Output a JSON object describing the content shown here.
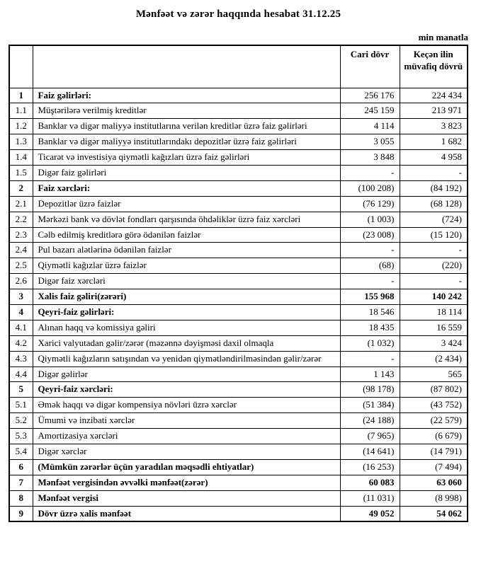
{
  "title": "Mənfəət və zərər haqqında hesabat 31.12.25",
  "unit_note": "min manatla",
  "table": {
    "headers": {
      "number": "",
      "label": "",
      "current": "Cari dövr",
      "previous": "Keçən ilin müvafiq dövrü"
    },
    "rows": [
      {
        "num": "1",
        "label": "Faiz gəlirləri:",
        "current": "256 176",
        "previous": "224 434",
        "bold": true
      },
      {
        "num": "1.1",
        "label": "Müştərilərə verilmiş kreditlər",
        "current": "245 159",
        "previous": "213 971"
      },
      {
        "num": "1.2",
        "label": "Banklar və digər maliyyə institutlarına verilən kreditlər üzrə faiz gəlirləri",
        "current": "4 114",
        "previous": "3 823"
      },
      {
        "num": "1.3",
        "label": "Banklar və digər maliyyə institutlarındakı depozitlər üzrə faiz gəlirləri",
        "current": "3 055",
        "previous": "1 682"
      },
      {
        "num": "1.4",
        "label": "Ticarət və investisiya qiymətli kağızları üzrə faiz gəlirləri",
        "current": "3 848",
        "previous": "4 958"
      },
      {
        "num": "1.5",
        "label": "Digər faiz gəlirləri",
        "current": "-",
        "previous": "-"
      },
      {
        "num": "2",
        "label": "Faiz xərcləri:",
        "current": "(100 208)",
        "previous": "(84 192)",
        "bold": true
      },
      {
        "num": "2.1",
        "label": "Depozitlər üzrə faizlər",
        "current": "(76 129)",
        "previous": "(68 128)"
      },
      {
        "num": "2.2",
        "label": "Mərkəzi bank və dövlət fondları qarşısında öhdəliklər üzrə faiz xərcləri",
        "current": "(1 003)",
        "previous": "(724)"
      },
      {
        "num": "2.3",
        "label": "Cəlb edilmiş kreditlərə görə ödənilən faizlər",
        "current": "(23 008)",
        "previous": "(15 120)"
      },
      {
        "num": "2.4",
        "label": "Pul bazarı alətlərinə ödənilən faizlər",
        "current": "-",
        "previous": "-"
      },
      {
        "num": "2.5",
        "label": "Qiymətli kağızlar üzrə faizlər",
        "current": "(68)",
        "previous": "(220)"
      },
      {
        "num": "2.6",
        "label": "Digər faiz xərcləri",
        "current": "-",
        "previous": "-"
      },
      {
        "num": "3",
        "label": "Xalis faiz gəliri(zərəri)",
        "current": "155 968",
        "previous": "140 242",
        "bold": true,
        "bold_values": true
      },
      {
        "num": "4",
        "label": "Qeyri-faiz gəlirləri:",
        "current": "18 546",
        "previous": "18 114",
        "bold": true
      },
      {
        "num": "4.1",
        "label": "Alınan haqq və komissiya gəliri",
        "current": "18 435",
        "previous": "16 559"
      },
      {
        "num": "4.2",
        "label": "Xarici valyutadan gəlir/zərər (məzənnə dəyişməsi daxil olmaqla",
        "current": "(1 032)",
        "previous": "3 424"
      },
      {
        "num": "4.3",
        "label": "Qiymətli kağızların satışından və yenidən qiymətləndirilməsindən gəlir/zərər",
        "current": "-",
        "previous": "(2 434)"
      },
      {
        "num": "4.4",
        "label": "Digər gəlirlər",
        "current": "1 143",
        "previous": "565"
      },
      {
        "num": "5",
        "label": "Qeyri-faiz xərcləri:",
        "current": "(98 178)",
        "previous": "(87 802)",
        "bold": true
      },
      {
        "num": "5.1",
        "label": "Əmək haqqı və digər kompensiya növləri üzrə xərclər",
        "current": "(51 384)",
        "previous": "(43 752)"
      },
      {
        "num": "5.2",
        "label": "Ümumi və inzibati xərclər",
        "current": "(24 188)",
        "previous": "(22 579)"
      },
      {
        "num": "5.3",
        "label": "Amortizasiya xərcləri",
        "current": "(7 965)",
        "previous": "(6 679)"
      },
      {
        "num": "5.4",
        "label": "Digər xərclər",
        "current": "(14 641)",
        "previous": "(14 791)"
      },
      {
        "num": "6",
        "label": "(Mümkün zərərlər üçün yaradılan məqsədli ehtiyatlar)",
        "current": "(16 253)",
        "previous": "(7 494)",
        "bold": true
      },
      {
        "num": "7",
        "label": "Mənfəət vergisindən əvvəlki mənfəət(zərər)",
        "current": "60 083",
        "previous": "63 060",
        "bold": true,
        "bold_values": true
      },
      {
        "num": "8",
        "label": "Mənfəət vergisi",
        "current": "(11 031)",
        "previous": "(8 998)",
        "bold": true
      },
      {
        "num": "9",
        "label": "Dövr üzrə xalis mənfəət",
        "current": "49 052",
        "previous": "54 062",
        "bold": true,
        "bold_values": true
      }
    ]
  }
}
